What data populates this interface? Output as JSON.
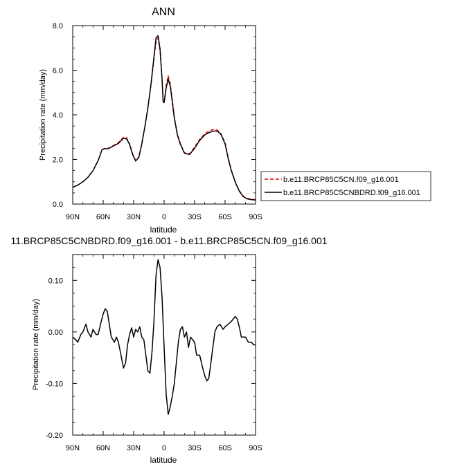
{
  "chart_data": [
    {
      "type": "line",
      "title": "ANN",
      "xlabel": "latitude",
      "ylabel": "Precipitation rate (mm/day)",
      "xlim": [
        90,
        -90
      ],
      "ylim": [
        0,
        8
      ],
      "x_ticks": [
        90,
        60,
        30,
        0,
        -30,
        -60,
        -90
      ],
      "x_tick_labels": [
        "90N",
        "60N",
        "30N",
        "0",
        "30S",
        "60S",
        "90S"
      ],
      "y_ticks": [
        0,
        2,
        4,
        6,
        8
      ],
      "y_tick_labels": [
        "0.0",
        "2.0",
        "4.0",
        "6.0",
        "8.0"
      ],
      "legend_position": "right",
      "series": [
        {
          "name": "b.e11.BRCP85C5CN.f09_g16.001",
          "color": "#e00000",
          "dash": "dashed",
          "x": [
            90,
            85,
            80,
            75,
            70,
            65,
            61,
            58,
            55,
            50,
            45,
            40,
            37,
            34,
            31,
            28,
            25,
            22,
            19,
            16,
            13,
            10,
            8,
            6,
            4,
            2,
            1,
            0,
            -2,
            -4,
            -6,
            -8,
            -10,
            -13,
            -16,
            -20,
            -25,
            -30,
            -35,
            -40,
            -45,
            -50,
            -53,
            -56,
            -60,
            -63,
            -66,
            -70,
            -74,
            -78,
            -82,
            -86,
            -90
          ],
          "y": [
            0.75,
            0.85,
            1.0,
            1.2,
            1.5,
            1.95,
            2.45,
            2.5,
            2.5,
            2.62,
            2.75,
            3.0,
            2.97,
            2.7,
            2.25,
            1.95,
            2.1,
            2.7,
            3.45,
            4.3,
            5.3,
            6.5,
            7.3,
            7.45,
            6.9,
            5.6,
            4.7,
            4.55,
            5.3,
            5.75,
            5.4,
            4.7,
            3.9,
            3.15,
            2.7,
            2.3,
            2.25,
            2.55,
            2.9,
            3.15,
            3.3,
            3.35,
            3.3,
            3.15,
            2.75,
            2.1,
            1.55,
            1.0,
            0.6,
            0.35,
            0.25,
            0.22,
            0.2
          ]
        },
        {
          "name": "b.e11.BRCP85C5CNBDRD.f09_g16.001",
          "color": "#000000",
          "dash": "solid",
          "x": [
            90,
            85,
            80,
            75,
            70,
            65,
            61,
            58,
            55,
            50,
            45,
            40,
            37,
            34,
            31,
            28,
            25,
            22,
            19,
            16,
            13,
            10,
            8,
            6,
            4,
            2,
            1,
            0,
            -2,
            -4,
            -6,
            -8,
            -10,
            -13,
            -16,
            -20,
            -25,
            -30,
            -35,
            -40,
            -45,
            -50,
            -53,
            -56,
            -60,
            -63,
            -66,
            -70,
            -74,
            -78,
            -82,
            -86,
            -90
          ],
          "y": [
            0.75,
            0.85,
            1.0,
            1.2,
            1.5,
            1.95,
            2.45,
            2.48,
            2.48,
            2.6,
            2.72,
            2.95,
            2.92,
            2.68,
            2.22,
            1.93,
            2.08,
            2.68,
            3.45,
            4.3,
            5.35,
            6.6,
            7.45,
            7.55,
            6.95,
            5.55,
            4.6,
            4.55,
            5.2,
            5.6,
            5.3,
            4.6,
            3.85,
            3.1,
            2.68,
            2.28,
            2.22,
            2.5,
            2.85,
            3.1,
            3.22,
            3.28,
            3.25,
            3.12,
            2.7,
            2.05,
            1.52,
            0.98,
            0.58,
            0.33,
            0.23,
            0.2,
            0.18
          ]
        }
      ]
    },
    {
      "type": "line",
      "title": "11.BRCP85C5CNBDRD.f09_g16.001 - b.e11.BRCP85C5CN.f09_g16.001",
      "xlabel": "latitude",
      "ylabel": "Precipitation rate (mm/day)",
      "xlim": [
        90,
        -90
      ],
      "ylim": [
        -0.2,
        0.15
      ],
      "x_ticks": [
        90,
        60,
        30,
        0,
        -30,
        -60,
        -90
      ],
      "x_tick_labels": [
        "90N",
        "60N",
        "30N",
        "0",
        "30S",
        "60S",
        "90S"
      ],
      "y_ticks": [
        -0.2,
        -0.1,
        0.0,
        0.1
      ],
      "y_tick_labels": [
        "-0.20",
        "-0.10",
        "0.00",
        "0.10"
      ],
      "series": [
        {
          "color": "#000000",
          "dash": "solid",
          "x": [
            90,
            87,
            85,
            82,
            80,
            77,
            75,
            72,
            70,
            67,
            65,
            62,
            60,
            58,
            56,
            54,
            52,
            49,
            47,
            45,
            42,
            40,
            38,
            36,
            34,
            32,
            30,
            28,
            26,
            24,
            22,
            20,
            18,
            16,
            14,
            12,
            10,
            8,
            6,
            4,
            2,
            0,
            -2,
            -4,
            -6,
            -8,
            -10,
            -12,
            -14,
            -16,
            -18,
            -20,
            -22,
            -24,
            -26,
            -28,
            -30,
            -32,
            -35,
            -38,
            -40,
            -42,
            -44,
            -46,
            -48,
            -50,
            -52,
            -55,
            -58,
            -60,
            -63,
            -66,
            -70,
            -72,
            -74,
            -76,
            -78,
            -80,
            -83,
            -86,
            -88,
            -90
          ],
          "y": [
            -0.01,
            -0.015,
            -0.02,
            -0.005,
            0.0,
            0.015,
            0.0,
            -0.01,
            0.005,
            -0.005,
            -0.005,
            0.02,
            0.035,
            0.045,
            0.04,
            0.015,
            -0.01,
            -0.02,
            -0.01,
            -0.02,
            -0.05,
            -0.07,
            -0.06,
            -0.025,
            -0.005,
            0.008,
            -0.01,
            0.005,
            0.0,
            0.01,
            -0.01,
            -0.015,
            -0.045,
            -0.075,
            -0.08,
            -0.04,
            0.02,
            0.11,
            0.14,
            0.125,
            0.065,
            -0.03,
            -0.12,
            -0.16,
            -0.145,
            -0.125,
            -0.1,
            -0.06,
            -0.02,
            0.005,
            0.01,
            -0.01,
            0.0,
            -0.03,
            -0.01,
            -0.015,
            -0.02,
            -0.045,
            -0.045,
            -0.07,
            -0.085,
            -0.095,
            -0.09,
            -0.06,
            -0.03,
            0.0,
            0.01,
            0.015,
            0.005,
            0.01,
            0.015,
            0.02,
            0.03,
            0.025,
            0.01,
            -0.01,
            -0.01,
            -0.01,
            -0.02,
            -0.02,
            -0.025,
            -0.025
          ]
        }
      ]
    }
  ]
}
